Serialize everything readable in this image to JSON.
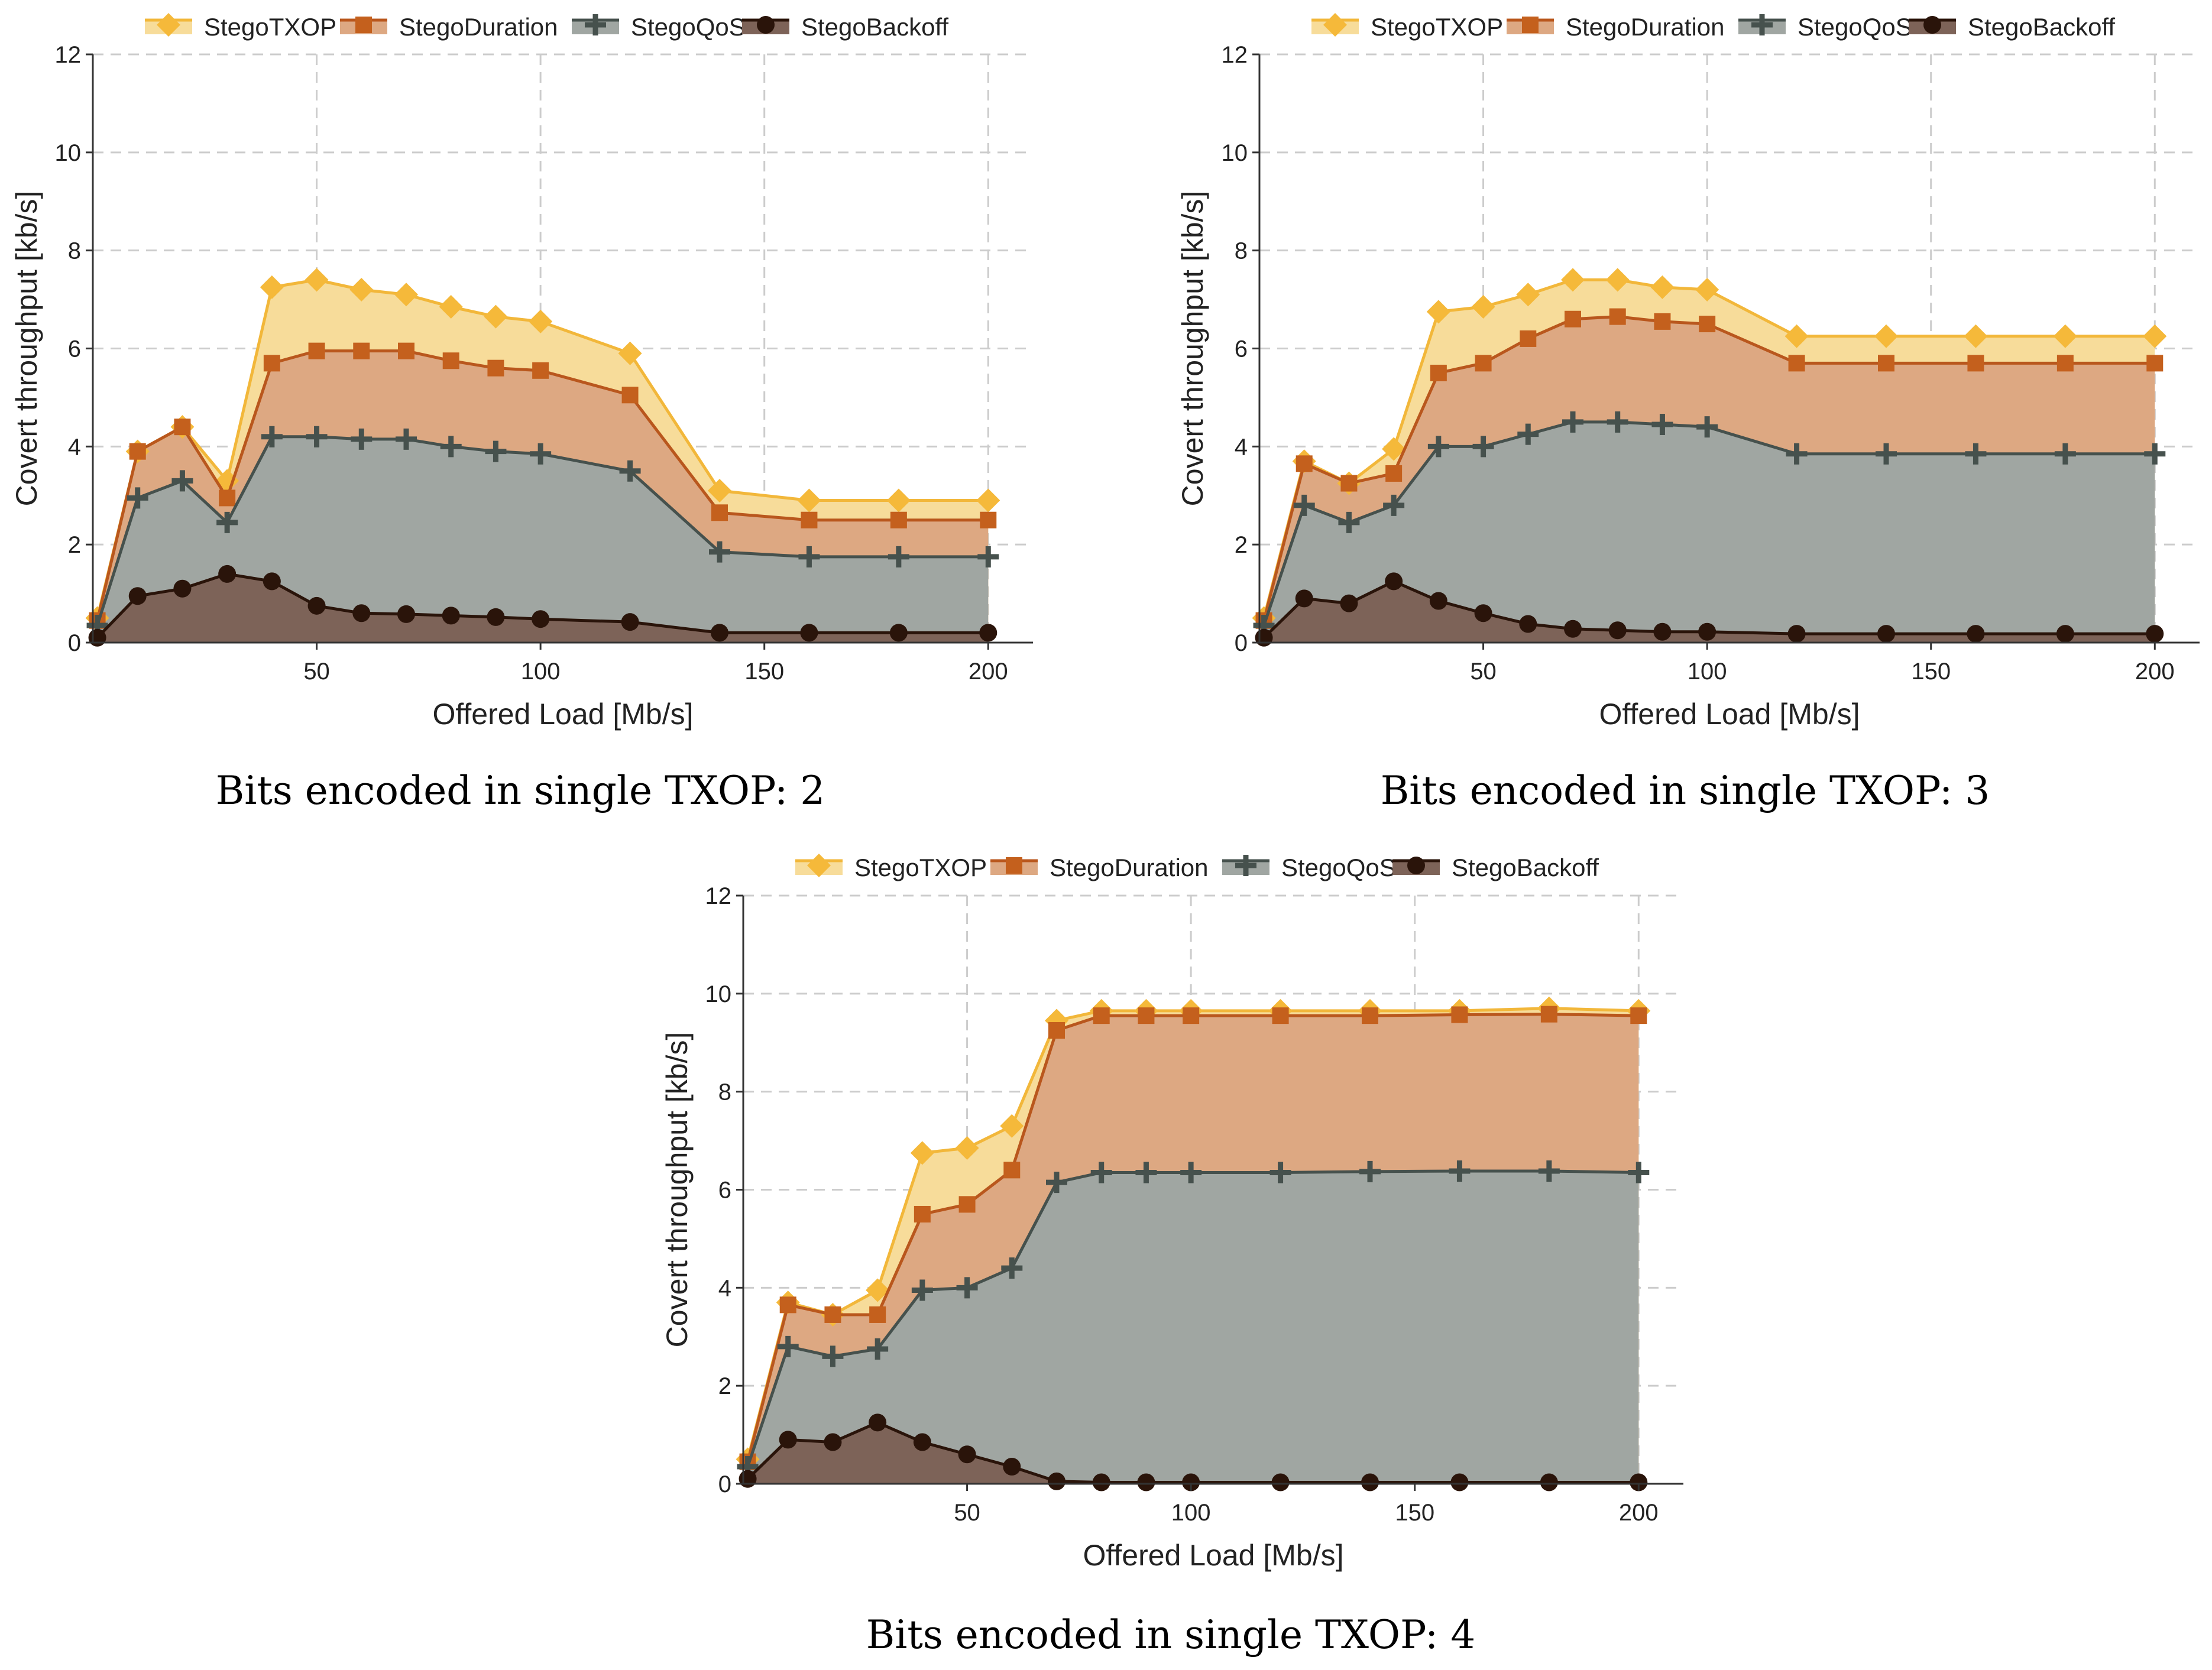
{
  "colors": {
    "StegoTXOP": {
      "line": "#f2b73a",
      "fill": "#f7dc9a",
      "marker": "#f5b93a"
    },
    "StegoDuration": {
      "line": "#b9571d",
      "fill": "#dda882",
      "marker": "#c4601d"
    },
    "StegoQoS": {
      "line": "#46514d",
      "fill": "#a0a6a2",
      "marker": "#46514d"
    },
    "StegoBackoff": {
      "line": "#2a140a",
      "fill": "#7d6358",
      "marker": "#2a140a"
    }
  },
  "chart_data": [
    {
      "type": "area",
      "caption": "Bits encoded in single TXOP: 2",
      "xlabel": "Offered Load [Mb/s]",
      "ylabel": "Covert throughput [kb/s]",
      "xlim": [
        0,
        210
      ],
      "ylim": [
        0,
        12
      ],
      "xticks": [
        50,
        100,
        150,
        200
      ],
      "yticks": [
        0,
        2,
        4,
        6,
        8,
        10,
        12
      ],
      "legend": [
        "StegoTXOP",
        "StegoDuration",
        "StegoQoS",
        "StegoBackoff"
      ],
      "x": [
        1,
        10,
        20,
        30,
        40,
        50,
        60,
        70,
        80,
        90,
        100,
        120,
        140,
        160,
        180,
        200
      ],
      "series": [
        {
          "name": "StegoTXOP",
          "marker": "diamond",
          "values": [
            0.5,
            3.9,
            4.4,
            3.3,
            7.25,
            7.4,
            7.2,
            7.1,
            6.85,
            6.65,
            6.55,
            5.9,
            3.1,
            2.9,
            2.9,
            2.9
          ]
        },
        {
          "name": "StegoDuration",
          "marker": "square",
          "values": [
            0.45,
            3.9,
            4.4,
            2.95,
            5.7,
            5.95,
            5.95,
            5.95,
            5.75,
            5.6,
            5.55,
            5.05,
            2.65,
            2.5,
            2.5,
            2.5
          ]
        },
        {
          "name": "StegoQoS",
          "marker": "plus",
          "values": [
            0.35,
            2.95,
            3.3,
            2.45,
            4.2,
            4.2,
            4.15,
            4.15,
            4.0,
            3.9,
            3.85,
            3.5,
            1.85,
            1.75,
            1.75,
            1.75
          ]
        },
        {
          "name": "StegoBackoff",
          "marker": "circle",
          "values": [
            0.1,
            0.95,
            1.1,
            1.4,
            1.25,
            0.75,
            0.6,
            0.58,
            0.55,
            0.52,
            0.48,
            0.42,
            0.2,
            0.2,
            0.2,
            0.2
          ]
        }
      ]
    },
    {
      "type": "area",
      "caption": "Bits encoded in single TXOP: 3",
      "xlabel": "Offered Load [Mb/s]",
      "ylabel": "Covert throughput [kb/s]",
      "xlim": [
        0,
        210
      ],
      "ylim": [
        0,
        12
      ],
      "xticks": [
        50,
        100,
        150,
        200
      ],
      "yticks": [
        0,
        2,
        4,
        6,
        8,
        10,
        12
      ],
      "legend": [
        "StegoTXOP",
        "StegoDuration",
        "StegoQoS",
        "StegoBackoff"
      ],
      "x": [
        1,
        10,
        20,
        30,
        40,
        50,
        60,
        70,
        80,
        90,
        100,
        120,
        140,
        160,
        180,
        200
      ],
      "series": [
        {
          "name": "StegoTXOP",
          "marker": "diamond",
          "values": [
            0.5,
            3.7,
            3.25,
            3.95,
            6.75,
            6.85,
            7.1,
            7.4,
            7.4,
            7.25,
            7.2,
            6.25,
            6.25,
            6.25,
            6.25,
            6.25
          ]
        },
        {
          "name": "StegoDuration",
          "marker": "square",
          "values": [
            0.45,
            3.65,
            3.25,
            3.45,
            5.5,
            5.7,
            6.2,
            6.6,
            6.65,
            6.55,
            6.5,
            5.7,
            5.7,
            5.7,
            5.7,
            5.7
          ]
        },
        {
          "name": "StegoQoS",
          "marker": "plus",
          "values": [
            0.35,
            2.8,
            2.45,
            2.8,
            4.0,
            4.0,
            4.25,
            4.5,
            4.5,
            4.45,
            4.4,
            3.85,
            3.85,
            3.85,
            3.85,
            3.85
          ]
        },
        {
          "name": "StegoBackoff",
          "marker": "circle",
          "values": [
            0.1,
            0.9,
            0.8,
            1.25,
            0.85,
            0.6,
            0.38,
            0.28,
            0.25,
            0.22,
            0.22,
            0.18,
            0.18,
            0.18,
            0.18,
            0.18
          ]
        }
      ]
    },
    {
      "type": "area",
      "caption": "Bits encoded in single TXOP: 4",
      "xlabel": "Offered Load [Mb/s]",
      "ylabel": "Covert throughput [kb/s]",
      "xlim": [
        0,
        210
      ],
      "ylim": [
        0,
        12
      ],
      "xticks": [
        50,
        100,
        150,
        200
      ],
      "yticks": [
        0,
        2,
        4,
        6,
        8,
        10,
        12
      ],
      "legend": [
        "StegoTXOP",
        "StegoDuration",
        "StegoQoS",
        "StegoBackoff"
      ],
      "x": [
        1,
        10,
        20,
        30,
        40,
        50,
        60,
        70,
        80,
        90,
        100,
        120,
        140,
        160,
        180,
        200
      ],
      "series": [
        {
          "name": "StegoTXOP",
          "marker": "diamond",
          "values": [
            0.5,
            3.7,
            3.45,
            3.95,
            6.75,
            6.85,
            7.3,
            9.45,
            9.65,
            9.65,
            9.65,
            9.65,
            9.65,
            9.65,
            9.7,
            9.65
          ]
        },
        {
          "name": "StegoDuration",
          "marker": "square",
          "values": [
            0.45,
            3.65,
            3.45,
            3.45,
            5.5,
            5.7,
            6.4,
            9.25,
            9.55,
            9.55,
            9.55,
            9.55,
            9.55,
            9.57,
            9.58,
            9.55
          ]
        },
        {
          "name": "StegoQoS",
          "marker": "plus",
          "values": [
            0.35,
            2.8,
            2.6,
            2.75,
            3.95,
            4.0,
            4.4,
            6.15,
            6.35,
            6.35,
            6.35,
            6.35,
            6.37,
            6.38,
            6.38,
            6.35
          ]
        },
        {
          "name": "StegoBackoff",
          "marker": "circle",
          "values": [
            0.1,
            0.9,
            0.85,
            1.25,
            0.85,
            0.6,
            0.35,
            0.05,
            0.03,
            0.03,
            0.03,
            0.03,
            0.03,
            0.03,
            0.03,
            0.03
          ]
        }
      ]
    }
  ]
}
